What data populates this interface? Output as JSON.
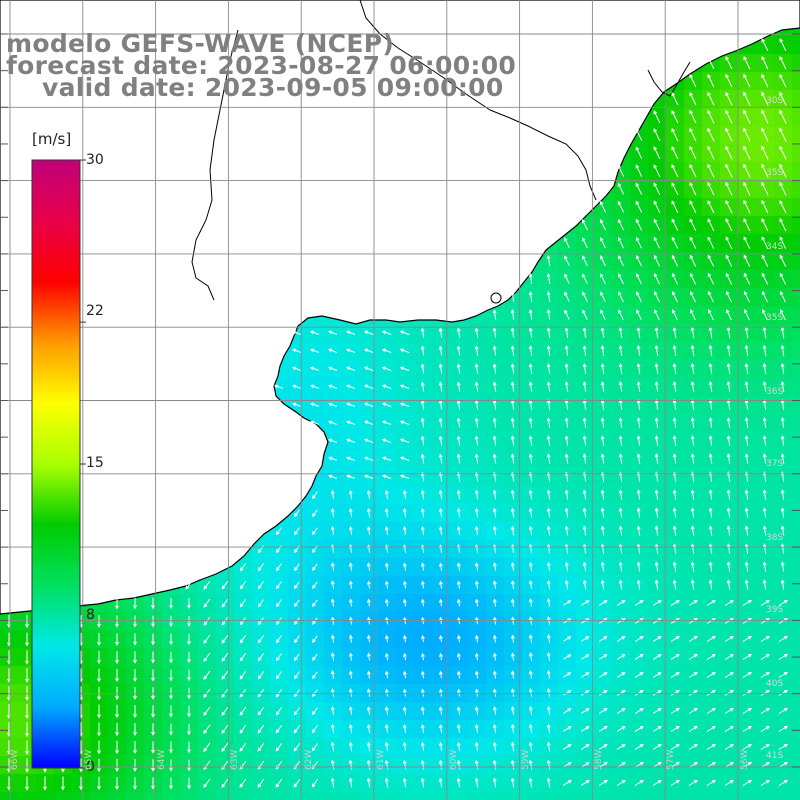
{
  "title": {
    "line1": "modelo GEFS-WAVE (NCEP)",
    "line2": "forecast date: 2023-08-27 06:00:00",
    "line3": "valid date: 2023-09-05 09:00:00"
  },
  "colorbar": {
    "unit": "[m/s]",
    "ticks": [
      "30",
      "22",
      "15",
      "8",
      "0"
    ],
    "tick_values": [
      30,
      22,
      15,
      8,
      0
    ],
    "min": 0,
    "max": 30,
    "colors": [
      "#0000ff",
      "#00aaff",
      "#00e8e8",
      "#00e060",
      "#00cc00",
      "#aaff00",
      "#ffff00",
      "#ff9900",
      "#ff0000",
      "#e8004a",
      "#c0007a"
    ]
  },
  "map": {
    "land_color": "#ffffff",
    "coast_color": "#000000",
    "grid_color": "#888888",
    "arrow_color": "#ffffff",
    "lat_labels": [
      "30S",
      "35S",
      "34S",
      "35S",
      "36S",
      "37S",
      "38S",
      "39S",
      "40S",
      "41S"
    ],
    "lon_labels": [
      "66W",
      "65W",
      "64W",
      "63W",
      "62W",
      "61W",
      "60W",
      "59W",
      "58W",
      "57W",
      "56W"
    ]
  }
}
